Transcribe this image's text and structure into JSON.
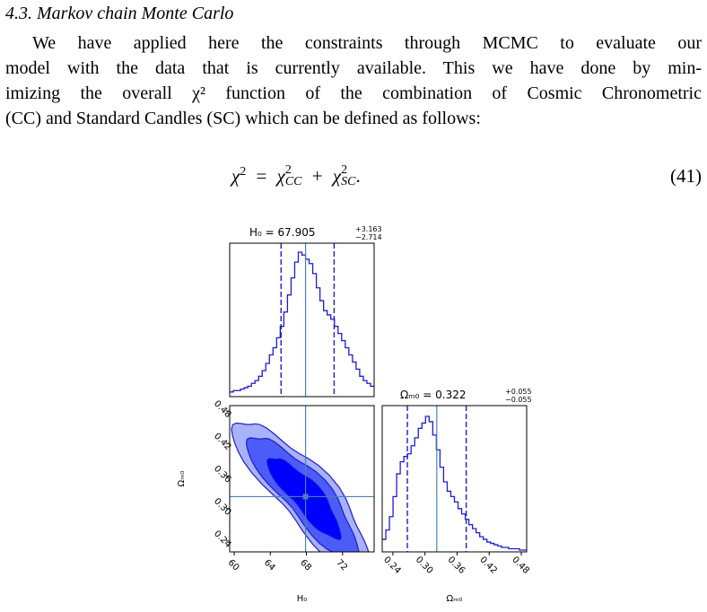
{
  "section": {
    "number": "4.3.",
    "title": "Markov chain Monte Carlo"
  },
  "paragraph_lines": [
    "We have applied here the constraints through MCMC to evaluate our",
    "model with the data that is currently available. This we have done by min-",
    "imizing the overall χ² function of the combination of Cosmic Chronometric",
    "(CC) and Standard Candles (SC) which can be defined as follows:"
  ],
  "equation": {
    "lhs": "χ",
    "lhs_sup": "2",
    "equals": "=",
    "term1": "χ",
    "term1_sup": "2",
    "term1_sub": "CC",
    "plus": "+",
    "term2": "χ",
    "term2_sup": "2",
    "term2_sub": "SC",
    "end": ".",
    "number": "(41)"
  },
  "chart_data": {
    "type": "corner",
    "parameters": [
      "H0",
      "Ωm0"
    ],
    "axis_labels": {
      "H0": "H₀",
      "Om": "Ωₘ₀"
    },
    "titles": {
      "H0": {
        "prefix": "H₀ = ",
        "value": "67.905",
        "plus": "+3.163",
        "minus": "−2.714"
      },
      "Om": {
        "prefix": "Ωₘ₀ = ",
        "value": "0.322",
        "plus": "+0.055",
        "minus": "−0.055"
      }
    },
    "best_fit": {
      "H0": 67.905,
      "Om": 0.322
    },
    "quantiles": {
      "H0": [
        65.191,
        71.068
      ],
      "Om": [
        0.267,
        0.377
      ]
    },
    "H0_range": [
      59.5,
      75.5
    ],
    "Om_range": [
      0.22,
      0.49
    ],
    "H0_ticks": [
      "60",
      "64",
      "68",
      "72"
    ],
    "H0_tick_values": [
      60,
      64,
      68,
      72
    ],
    "Om_ticks": [
      "0.24",
      "0.30",
      "0.36",
      "0.42",
      "0.48"
    ],
    "Om_tick_values": [
      0.24,
      0.3,
      0.36,
      0.42,
      0.48
    ],
    "H0_hist": {
      "bin_start": 59.5,
      "bin_width": 0.4,
      "counts": [
        2,
        3,
        3,
        4,
        5,
        6,
        8,
        10,
        13,
        17,
        22,
        28,
        33,
        40,
        48,
        58,
        70,
        82,
        93,
        100,
        98,
        95,
        92,
        85,
        75,
        66,
        59,
        56,
        53,
        48,
        43,
        38,
        33,
        28,
        23,
        18,
        13,
        10,
        8,
        6
      ]
    },
    "Om_hist": {
      "bin_start": 0.22,
      "bin_width": 0.00675,
      "counts": [
        8,
        15,
        25,
        40,
        57,
        66,
        70,
        72,
        78,
        84,
        91,
        95,
        100,
        96,
        86,
        75,
        62,
        51,
        44,
        40,
        36,
        31,
        27,
        23,
        19,
        16,
        13,
        10,
        8,
        6,
        5,
        4,
        3,
        2,
        2,
        1,
        1,
        1,
        0,
        0
      ]
    },
    "colors": {
      "fill_inner": "#0000ff",
      "fill_mid": "#4c5cf6",
      "fill_outer": "#a7b2f8",
      "line": "#1d1dd1",
      "truth": "#4a82b3",
      "axis": "#000000"
    }
  }
}
